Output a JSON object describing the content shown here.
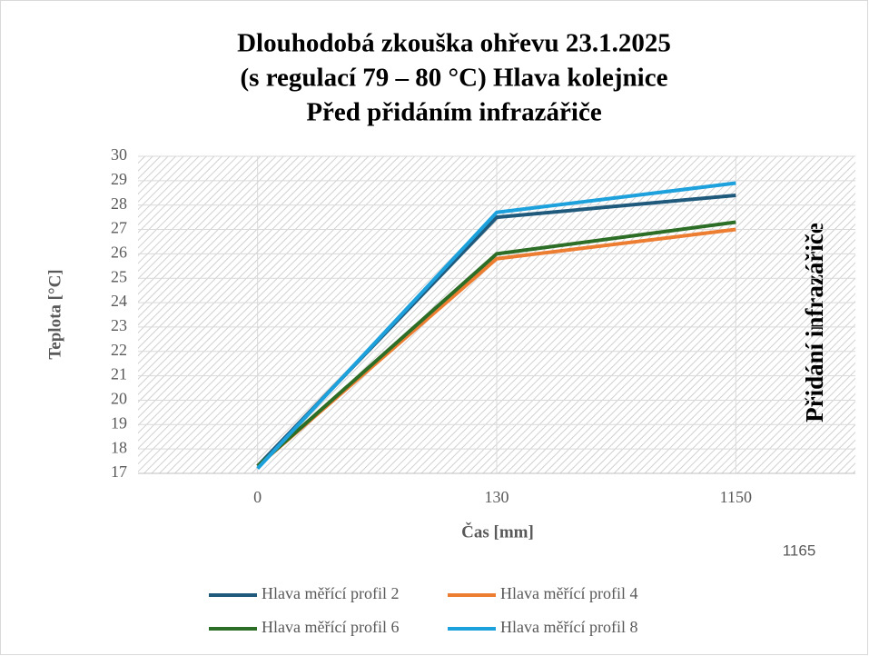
{
  "chart_data": {
    "type": "line",
    "title": [
      "Dlouhodobá zkouška ohřevu 23.1.2025",
      "(s regulací 79 – 80 °C) Hlava kolejnice",
      "Před přidáním infrazářiče"
    ],
    "xlabel": "Čas [mm]",
    "ylabel": "Teplota [°C]",
    "annotations": [
      "Přidání infrazářiče",
      "1165"
    ],
    "categories": [
      "0",
      "130",
      "1150"
    ],
    "series": [
      {
        "name": "Hlava měřící profil 2",
        "color": "#1f5a7d",
        "values": [
          17.3,
          27.5,
          28.4
        ]
      },
      {
        "name": "Hlava měřící profil 4",
        "color": "#ed7d31",
        "values": [
          17.3,
          25.8,
          27.0
        ]
      },
      {
        "name": "Hlava měřící profil 6",
        "color": "#2d6e27",
        "values": [
          17.3,
          26.0,
          27.3
        ]
      },
      {
        "name": "Hlava měřící profil 8",
        "color": "#1da1dc",
        "values": [
          17.2,
          27.7,
          28.9
        ]
      }
    ],
    "ylim": [
      17,
      30
    ],
    "yticks": [
      17,
      18,
      19,
      20,
      21,
      22,
      23,
      24,
      25,
      26,
      27,
      28,
      29,
      30
    ],
    "grid": true,
    "legend": "bottom"
  }
}
